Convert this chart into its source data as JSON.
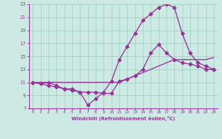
{
  "title": "",
  "xlabel": "Windchill (Refroidissement éolien,°C)",
  "ylabel": "",
  "bg_color": "#cce9e4",
  "grid_color": "#99ccbb",
  "line_color": "#993399",
  "marker": "D",
  "markersize": 2.5,
  "linewidth": 1.0,
  "xlim": [
    -0.5,
    23.5
  ],
  "ylim": [
    7,
    23
  ],
  "xticks": [
    0,
    1,
    2,
    3,
    4,
    5,
    6,
    7,
    8,
    9,
    10,
    11,
    12,
    13,
    14,
    15,
    16,
    17,
    18,
    19,
    20,
    21,
    22,
    23
  ],
  "yticks": [
    7,
    9,
    11,
    13,
    15,
    17,
    19,
    21,
    23
  ],
  "line1_x": [
    0,
    1,
    2,
    3,
    4,
    5,
    6,
    7,
    8,
    9,
    10,
    11,
    12,
    13,
    14,
    15,
    16,
    17,
    18,
    19,
    20,
    21,
    22,
    23
  ],
  "line1_y": [
    11,
    10.8,
    11,
    10.5,
    10,
    10,
    9.5,
    7.5,
    8.5,
    9.5,
    11.2,
    14.5,
    16.5,
    18.5,
    20.5,
    21.5,
    22.5,
    23,
    22.5,
    18.5,
    15.5,
    14,
    13.5,
    13
  ],
  "line2_x": [
    0,
    1,
    2,
    3,
    4,
    5,
    6,
    7,
    8,
    9,
    10,
    11,
    12,
    13,
    14,
    15,
    16,
    17,
    18,
    19,
    20,
    21,
    22,
    23
  ],
  "line2_y": [
    11,
    11,
    11,
    11,
    11,
    11,
    11,
    11,
    11,
    11,
    11,
    11,
    11.5,
    12,
    12.5,
    13,
    13.5,
    14,
    14.5,
    14.5,
    14.5,
    14.5,
    14.5,
    14.8
  ],
  "line3_x": [
    0,
    1,
    2,
    3,
    4,
    5,
    6,
    7,
    8,
    9,
    10,
    11,
    12,
    13,
    14,
    15,
    16,
    17,
    18,
    19,
    20,
    21,
    22,
    23
  ],
  "line3_y": [
    11,
    10.8,
    10.5,
    10.3,
    10.0,
    9.8,
    9.5,
    9.5,
    9.5,
    9.3,
    9.3,
    11.2,
    11.5,
    12.0,
    13.0,
    15.5,
    16.8,
    15.5,
    14.5,
    14.0,
    13.8,
    13.5,
    13.0,
    13.0
  ]
}
